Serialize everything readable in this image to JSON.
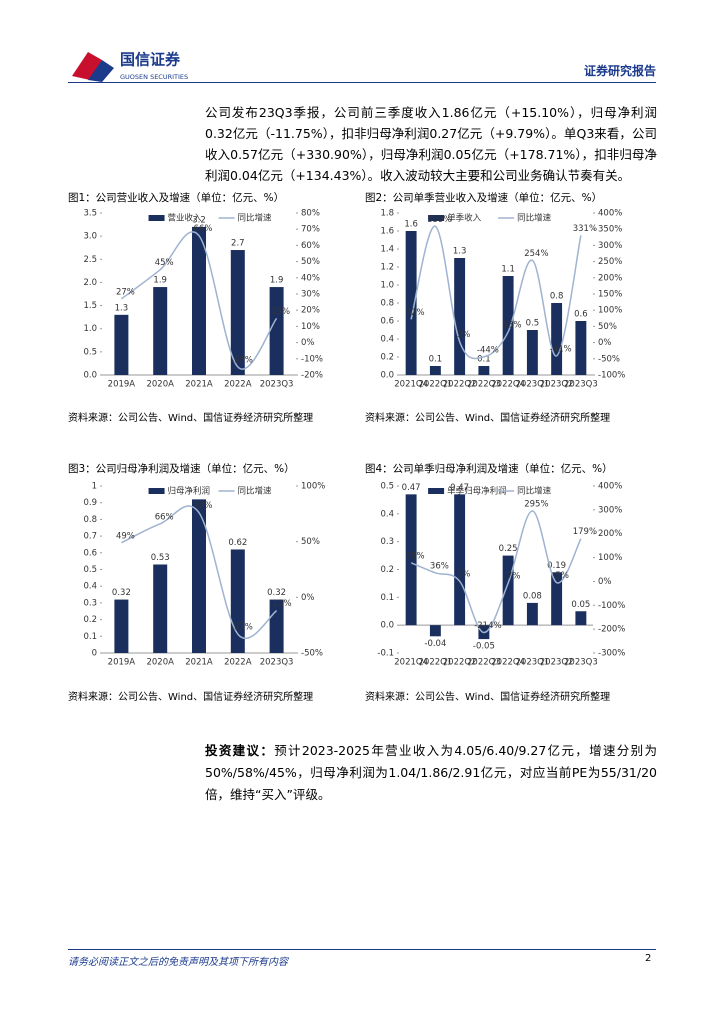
{
  "header": {
    "company": "国信证券",
    "company_en": "GUOSEN SECURITIES",
    "report_type": "证券研究报告"
  },
  "body": {
    "paragraph": "公司发布23Q3季报，公司前三季度收入1.86亿元（+15.10%），归母净利润0.32亿元（-11.75%），扣非归母净利润0.27亿元（+9.79%）。单Q3来看，公司收入0.57亿元（+330.90%），归母净利润0.05亿元（+178.71%），扣非归母净利润0.04亿元（+134.43%）。收入波动较大主要和公司业务确认节奏有关。"
  },
  "chart_data": [
    {
      "type": "combo",
      "title": "图1：公司营业收入及增速（单位：亿元、%）",
      "source": "资料来源：公司公告、Wind、国信证券经济研究所整理",
      "categories": [
        "2019A",
        "2020A",
        "2021A",
        "2022A",
        "2023Q3"
      ],
      "series": [
        {
          "name": "营业收入",
          "color": "#1b2f5e",
          "values": [
            1.3,
            1.9,
            3.2,
            2.7,
            1.9
          ]
        },
        {
          "name": "同比增速",
          "color": "#9fb3d1",
          "axis": "y2",
          "values": [
            27,
            45,
            66,
            -15,
            15
          ],
          "value_labels": [
            "27%",
            "45%",
            "66%",
            "-15%",
            "15%"
          ]
        }
      ],
      "ylim": [
        0,
        3.5
      ],
      "yticks": [
        {
          "value": 0,
          "label": "0.0"
        },
        0.5,
        {
          "value": 1,
          "label": "1.0"
        },
        1.5,
        {
          "value": 2,
          "label": "2.0"
        },
        2.5,
        {
          "value": 3,
          "label": "3.0"
        },
        3.5
      ],
      "y2lim": [
        -20,
        80
      ],
      "y2ticks": [
        {
          "value": -20,
          "label": "-20%"
        },
        {
          "value": -10,
          "label": "-10%"
        },
        {
          "value": 0,
          "label": "0%"
        },
        {
          "value": 10,
          "label": "10%"
        },
        {
          "value": 20,
          "label": "20%"
        },
        {
          "value": 30,
          "label": "30%"
        },
        {
          "value": 40,
          "label": "40%"
        },
        {
          "value": 50,
          "label": "50%"
        },
        {
          "value": 60,
          "label": "60%"
        },
        {
          "value": 70,
          "label": "70%"
        },
        {
          "value": 80,
          "label": "80%"
        }
      ]
    },
    {
      "type": "combo",
      "title": "图2：公司单季营业收入及增速（单位：亿元、%）",
      "source": "资料来源：公司公告、Wind、国信证券经济研究所整理",
      "categories": [
        "2021Q4",
        "2022Q1",
        "2022Q2",
        "2022Q3",
        "2022Q4",
        "2023Q1",
        "2023Q2",
        "2023Q3"
      ],
      "series": [
        {
          "name": "单季收入",
          "color": "#1b2f5e",
          "values": [
            1.6,
            0.1,
            1.3,
            0.1,
            1.1,
            0.5,
            0.8,
            0.6
          ]
        },
        {
          "name": "同比增速",
          "color": "#9fb3d1",
          "axis": "y2",
          "values": [
            72,
            359,
            3,
            -44,
            33,
            254,
            -41,
            331
          ],
          "value_labels": [
            "72%",
            "359%",
            "3%",
            "-44%",
            "33%",
            "254%",
            "-41%",
            "331%"
          ]
        }
      ],
      "ylim": [
        0,
        1.8
      ],
      "yticks": [
        {
          "value": 0,
          "label": "0.0"
        },
        0.2,
        0.4,
        0.6,
        0.8,
        {
          "value": 1,
          "label": "1.0"
        },
        1.2,
        1.4,
        1.6,
        1.8
      ],
      "y2lim": [
        -100,
        400
      ],
      "y2ticks": [
        {
          "value": -100,
          "label": "-100%"
        },
        {
          "value": -50,
          "label": "-50%"
        },
        {
          "value": 0,
          "label": "0%"
        },
        {
          "value": 50,
          "label": "50%"
        },
        {
          "value": 100,
          "label": "100%"
        },
        {
          "value": 150,
          "label": "150%"
        },
        {
          "value": 200,
          "label": "200%"
        },
        {
          "value": 250,
          "label": "250%"
        },
        {
          "value": 300,
          "label": "300%"
        },
        {
          "value": 350,
          "label": "350%"
        },
        {
          "value": 400,
          "label": "400%"
        }
      ]
    },
    {
      "type": "combo",
      "title": "图3：公司归母净利润及增速（单位：亿元、%）",
      "source": "资料来源：公司公告、Wind、国信证券经济研究所整理",
      "categories": [
        "2019A",
        "2020A",
        "2021A",
        "2022A",
        "2023Q3"
      ],
      "series": [
        {
          "name": "归母净利润",
          "color": "#1b2f5e",
          "values": [
            0.32,
            0.53,
            0.92,
            0.62,
            0.32
          ],
          "value_labels": [
            "0.32",
            "0.53",
            null,
            "0.62",
            "0.32"
          ]
        },
        {
          "name": "同比增速",
          "color": "#9fb3d1",
          "axis": "y2",
          "values": [
            49,
            66,
            76,
            -33,
            -12
          ],
          "value_labels": [
            "49%",
            "66%",
            "76%",
            "-33%",
            "-12%"
          ]
        }
      ],
      "ylim": [
        0,
        1
      ],
      "yticks": [
        0,
        0.1,
        0.2,
        0.3,
        0.4,
        0.5,
        0.6,
        0.7,
        0.8,
        0.9,
        1
      ],
      "y2lim": [
        -50,
        100
      ],
      "y2ticks": [
        {
          "value": -50,
          "label": "-50%"
        },
        {
          "value": 0,
          "label": "0%"
        },
        {
          "value": 50,
          "label": "50%"
        },
        {
          "value": 100,
          "label": "100%"
        }
      ]
    },
    {
      "type": "combo",
      "title": "图4：公司单季归母净利润及增速（单位：亿元、%）",
      "source": "资料来源：公司公告、Wind、国信证券经济研究所整理",
      "categories": [
        "2021Q4",
        "2022Q1",
        "2022Q2",
        "2022Q3",
        "2022Q4",
        "2023Q1",
        "2023Q2",
        "2023Q3"
      ],
      "series": [
        {
          "name": "单季归母净利润",
          "color": "#1b2f5e",
          "values": [
            0.47,
            -0.04,
            0.47,
            -0.05,
            0.25,
            0.08,
            0.19,
            0.05
          ]
        },
        {
          "name": "同比增速",
          "color": "#9fb3d1",
          "axis": "y2",
          "values": [
            78,
            36,
            1,
            -214,
            -7,
            295,
            -5,
            179
          ],
          "value_labels": [
            "78%",
            "36%",
            "1%",
            "-214%",
            "-7%",
            "295%",
            "-5%",
            "179%"
          ]
        }
      ],
      "ylim": [
        -0.1,
        0.5
      ],
      "yticks": [
        -0.1,
        {
          "value": 0,
          "label": "0.0"
        },
        0.1,
        0.2,
        0.3,
        0.4,
        0.5
      ],
      "y2lim": [
        -300,
        400
      ],
      "y2ticks": [
        {
          "value": -300,
          "label": "-300%"
        },
        {
          "value": -200,
          "label": "-200%"
        },
        {
          "value": -100,
          "label": "-100%"
        },
        {
          "value": 0,
          "label": "0%"
        },
        {
          "value": 100,
          "label": "100%"
        },
        {
          "value": 200,
          "label": "200%"
        },
        {
          "value": 300,
          "label": "300%"
        },
        {
          "value": 400,
          "label": "400%"
        }
      ]
    }
  ],
  "investment": {
    "lead": "投资建议：",
    "text": "预计2023-2025年营业收入为4.05/6.40/9.27亿元，增速分别为50%/58%/45%，归母净利润为1.04/1.86/2.91亿元，对应当前PE为55/31/20倍，维持“买入”评级。"
  },
  "footer": {
    "disclaimer": "请务必阅读正文之后的免责声明及其项下所有内容",
    "page": "2"
  }
}
